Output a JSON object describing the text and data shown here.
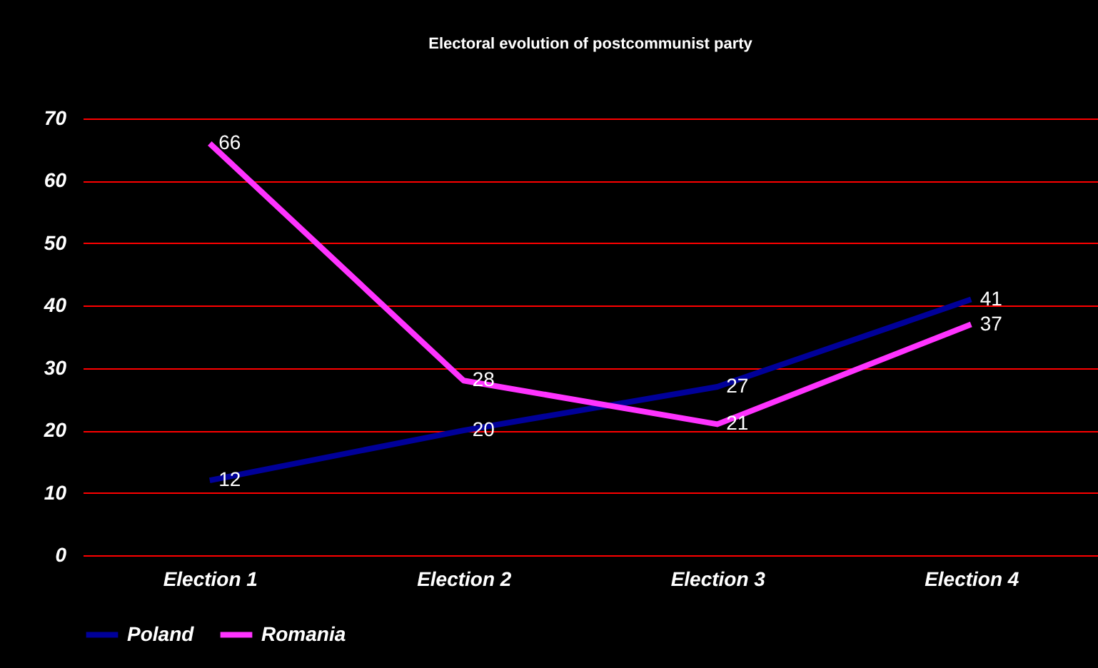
{
  "chart_data": {
    "type": "line",
    "title": "Electoral evolution of postcommunist party",
    "categories": [
      "Election 1",
      "Election 2",
      "Election 3",
      "Election 4"
    ],
    "series": [
      {
        "name": "Poland",
        "color": "#000099",
        "values": [
          12,
          20,
          27,
          41
        ]
      },
      {
        "name": "Romania",
        "color": "#ff33ff",
        "values": [
          66,
          28,
          21,
          37
        ]
      }
    ],
    "ylim": [
      0,
      70
    ],
    "yticks": [
      0,
      10,
      20,
      30,
      40,
      50,
      60,
      70
    ],
    "grid": "y",
    "legend": "bottom",
    "data_labels": true,
    "marker": "none",
    "line_style": "solid"
  }
}
